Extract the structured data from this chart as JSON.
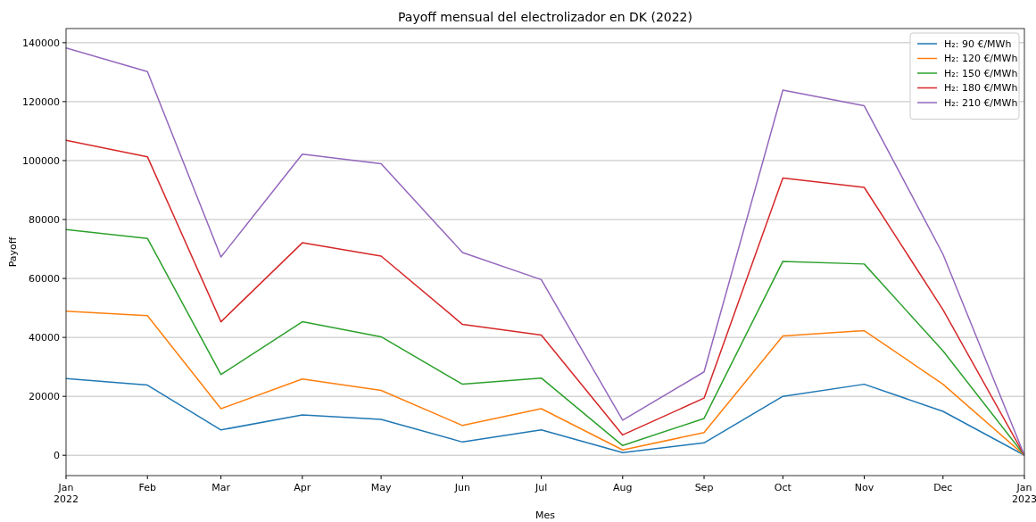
{
  "chart_data": {
    "type": "line",
    "title": "Payoff mensual del electrolizador en DK (2022)",
    "xlabel": "Mes",
    "ylabel": "Payoff",
    "x": [
      "2022-01",
      "2022-02",
      "2022-03",
      "2022-04",
      "2022-05",
      "2022-06",
      "2022-07",
      "2022-08",
      "2022-09",
      "2022-10",
      "2022-11",
      "2022-12",
      "2023-01"
    ],
    "series": [
      {
        "name": "H₂: 90 €/MWh",
        "color": "#1f77b4",
        "values": [
          26000,
          23800,
          8600,
          13700,
          12200,
          4500,
          8600,
          900,
          4200,
          20000,
          24100,
          14900,
          0
        ]
      },
      {
        "name": "H₂: 120 €/MWh",
        "color": "#ff7f0e",
        "values": [
          48900,
          47400,
          15800,
          25900,
          22000,
          10100,
          15800,
          1800,
          7700,
          40500,
          42300,
          24100,
          0
        ]
      },
      {
        "name": "H₂: 150 €/MWh",
        "color": "#2ca02c",
        "values": [
          76600,
          73600,
          27400,
          45300,
          40200,
          24100,
          26200,
          3300,
          12500,
          65800,
          64900,
          35400,
          0
        ]
      },
      {
        "name": "H₂: 180 €/MWh",
        "color": "#d62728",
        "values": [
          106900,
          101300,
          45300,
          72100,
          67600,
          44400,
          40800,
          6900,
          19400,
          94100,
          90900,
          49400,
          0
        ]
      },
      {
        "name": "H₂: 210 €/MWh",
        "color": "#9467bd",
        "values": [
          138200,
          130200,
          67300,
          102200,
          98900,
          68800,
          59600,
          11900,
          28300,
          123900,
          118600,
          68200,
          0
        ]
      }
    ],
    "xlim": [
      "2022-01",
      "2023-01"
    ],
    "xticks": [
      {
        "value": "2022-01",
        "label": "Jan\n2022"
      },
      {
        "value": "2022-02",
        "label": "Feb"
      },
      {
        "value": "2022-03",
        "label": "Mar"
      },
      {
        "value": "2022-04",
        "label": "Apr"
      },
      {
        "value": "2022-05",
        "label": "May"
      },
      {
        "value": "2022-06",
        "label": "Jun"
      },
      {
        "value": "2022-07",
        "label": "Jul"
      },
      {
        "value": "2022-08",
        "label": "Aug"
      },
      {
        "value": "2022-09",
        "label": "Sep"
      },
      {
        "value": "2022-10",
        "label": "Oct"
      },
      {
        "value": "2022-11",
        "label": "Nov"
      },
      {
        "value": "2022-12",
        "label": "Dec"
      },
      {
        "value": "2023-01",
        "label": "Jan\n2023"
      }
    ],
    "ylim": [
      -6900,
      144800
    ],
    "yticks": [
      0,
      20000,
      40000,
      60000,
      80000,
      100000,
      120000,
      140000
    ],
    "grid": "y",
    "legend": "top right",
    "marker": "none",
    "line_style": "solid"
  }
}
